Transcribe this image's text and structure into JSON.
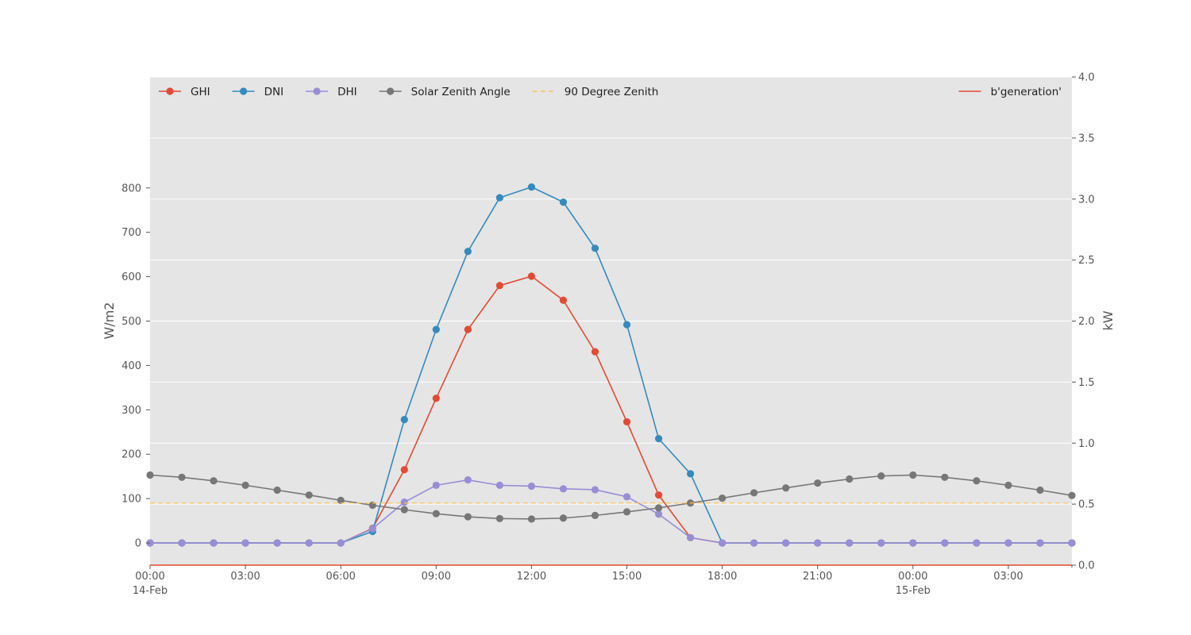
{
  "chart_data": {
    "type": "line",
    "title": "",
    "ylabel": "W/m2",
    "y2label": "kW",
    "ylim": [
      -50,
      1050
    ],
    "y2lim": [
      0.0,
      4.0
    ],
    "grid": true,
    "legend_placement": "top-left",
    "legend2_placement": "top-right",
    "x": [
      "14-Feb 00:00",
      "14-Feb 01:00",
      "14-Feb 02:00",
      "14-Feb 03:00",
      "14-Feb 04:00",
      "14-Feb 05:00",
      "14-Feb 06:00",
      "14-Feb 07:00",
      "14-Feb 08:00",
      "14-Feb 09:00",
      "14-Feb 10:00",
      "14-Feb 11:00",
      "14-Feb 12:00",
      "14-Feb 13:00",
      "14-Feb 14:00",
      "14-Feb 15:00",
      "14-Feb 16:00",
      "14-Feb 17:00",
      "14-Feb 18:00",
      "14-Feb 19:00",
      "14-Feb 20:00",
      "14-Feb 21:00",
      "14-Feb 22:00",
      "14-Feb 23:00",
      "15-Feb 00:00",
      "15-Feb 01:00",
      "15-Feb 02:00",
      "15-Feb 03:00",
      "15-Feb 04:00",
      "15-Feb 05:00"
    ],
    "x_ticks": [
      {
        "label": "00:00",
        "sublabel": "14-Feb"
      },
      {
        "label": "03:00",
        "sublabel": ""
      },
      {
        "label": "06:00",
        "sublabel": ""
      },
      {
        "label": "09:00",
        "sublabel": ""
      },
      {
        "label": "12:00",
        "sublabel": ""
      },
      {
        "label": "15:00",
        "sublabel": ""
      },
      {
        "label": "18:00",
        "sublabel": ""
      },
      {
        "label": "21:00",
        "sublabel": ""
      },
      {
        "label": "00:00",
        "sublabel": "15-Feb"
      },
      {
        "label": "03:00",
        "sublabel": ""
      }
    ],
    "y_ticks": [
      "0",
      "100",
      "200",
      "300",
      "400",
      "500",
      "600",
      "700",
      "800"
    ],
    "y2_ticks": [
      "0.0",
      "0.5",
      "1.0",
      "1.5",
      "2.0",
      "2.5",
      "3.0",
      "3.5",
      "4.0"
    ],
    "series": [
      {
        "name": "GHI",
        "axis": "left",
        "color": "#E24A33",
        "marker": true,
        "dashed": false,
        "values": [
          0,
          0,
          0,
          0,
          0,
          0,
          0,
          33,
          165,
          326,
          481,
          580,
          601,
          547,
          431,
          273,
          108,
          12,
          0,
          0,
          0,
          0,
          0,
          0,
          0,
          0,
          0,
          0,
          0,
          0
        ]
      },
      {
        "name": "DNI",
        "axis": "left",
        "color": "#348ABD",
        "marker": true,
        "dashed": false,
        "values": [
          0,
          0,
          0,
          0,
          0,
          0,
          0,
          26,
          278,
          481,
          657,
          778,
          802,
          768,
          664,
          492,
          235,
          156,
          0,
          0,
          0,
          0,
          0,
          0,
          0,
          0,
          0,
          0,
          0,
          0
        ]
      },
      {
        "name": "DHI",
        "axis": "left",
        "color": "#988ED5",
        "marker": true,
        "dashed": false,
        "values": [
          0,
          0,
          0,
          0,
          0,
          0,
          0,
          32,
          92,
          130,
          142,
          130,
          128,
          122,
          120,
          104,
          65,
          12,
          0,
          0,
          0,
          0,
          0,
          0,
          0,
          0,
          0,
          0,
          0,
          0
        ]
      },
      {
        "name": "Solar Zenith Angle",
        "axis": "left",
        "color": "#777777",
        "marker": true,
        "dashed": false,
        "values": [
          153,
          148,
          140,
          130,
          119,
          108,
          96,
          85,
          75,
          66,
          59,
          55,
          54,
          56,
          62,
          70,
          79,
          90,
          101,
          113,
          124,
          135,
          144,
          151,
          153,
          148,
          140,
          130,
          119,
          107
        ]
      },
      {
        "name": "90 Degree Zenith",
        "axis": "left",
        "color": "#FBC15E",
        "marker": false,
        "dashed": true,
        "values": [
          90,
          90,
          90,
          90,
          90,
          90,
          90,
          90,
          90,
          90,
          90,
          90,
          90,
          90,
          90,
          90,
          90,
          90,
          90,
          90,
          90,
          90,
          90,
          90,
          90,
          90,
          90,
          90,
          90,
          90
        ]
      }
    ],
    "series2": [
      {
        "name": "b'generation'",
        "axis": "right",
        "color": "#E24A33",
        "marker": false,
        "dashed": false,
        "values": [
          0,
          0,
          0,
          0,
          0,
          0,
          0,
          0,
          0,
          0,
          0,
          0,
          0,
          0,
          0,
          0,
          0,
          0,
          0,
          0,
          0,
          0,
          0,
          0,
          0,
          0,
          0,
          0,
          0,
          0
        ]
      }
    ]
  }
}
